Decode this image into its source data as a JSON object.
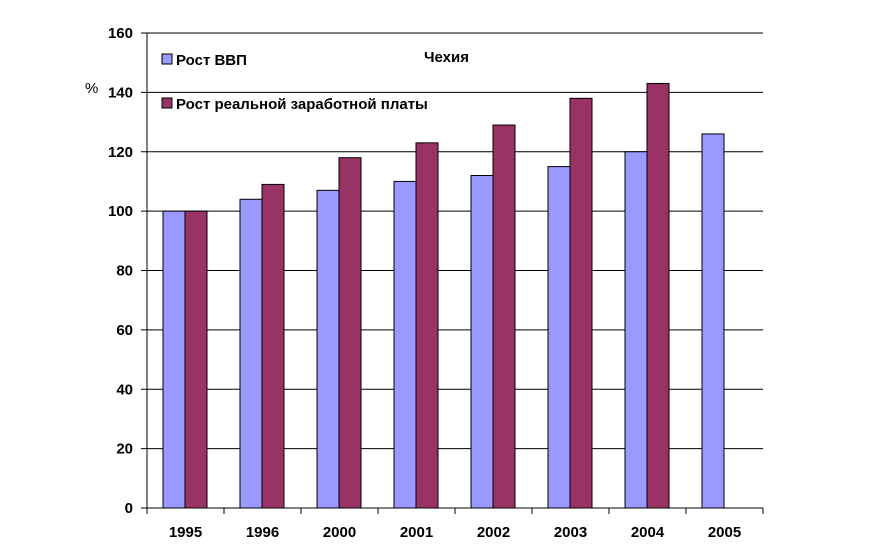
{
  "chart_data": {
    "type": "bar",
    "title": "Чехия",
    "ylabel": "%",
    "xlabel": "",
    "ylim": [
      0,
      160
    ],
    "yticks": [
      0,
      20,
      40,
      60,
      80,
      100,
      120,
      140,
      160
    ],
    "grid": true,
    "legend_position": "top-left",
    "categories": [
      "1995",
      "1996",
      "2000",
      "2001",
      "2002",
      "2003",
      "2004",
      "2005"
    ],
    "series": [
      {
        "name": "Рост ВВП",
        "color": "#9999ff",
        "values": [
          100,
          104,
          107,
          110,
          112,
          115,
          120,
          126
        ]
      },
      {
        "name": "Рост реальной заработной платы",
        "color": "#993366",
        "values": [
          100,
          109,
          118,
          123,
          129,
          138,
          143,
          null
        ]
      }
    ]
  }
}
